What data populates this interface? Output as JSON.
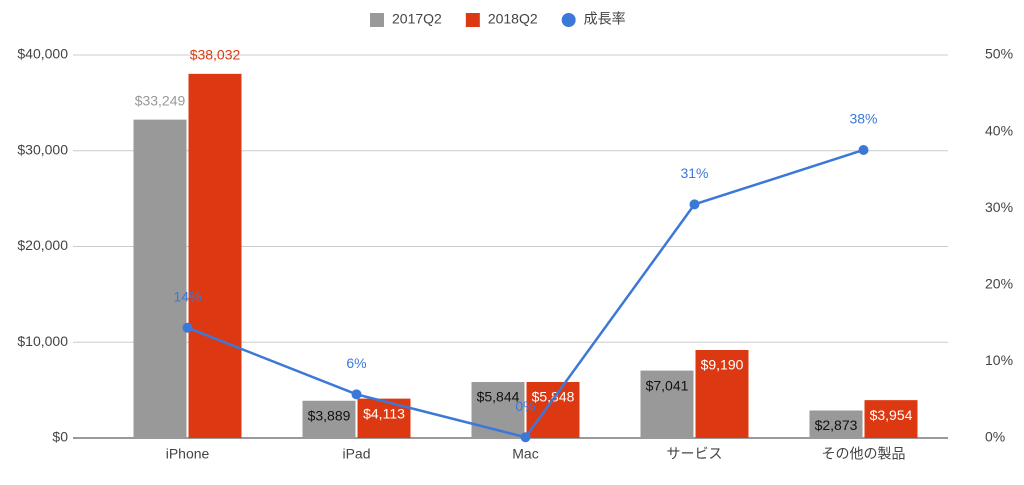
{
  "chart_data": {
    "type": "bar",
    "categories": [
      "iPhone",
      "iPad",
      "Mac",
      "サービス",
      "その他の製品"
    ],
    "series": [
      {
        "name": "2017Q2",
        "color": "#999999",
        "values": [
          33249,
          3889,
          5844,
          7041,
          2873
        ],
        "value_labels": [
          "$33,249",
          "$3,889",
          "$5,844",
          "$7,041",
          "$2,873"
        ]
      },
      {
        "name": "2018Q2",
        "color": "#dc3912",
        "values": [
          38032,
          4113,
          5848,
          9190,
          3954
        ],
        "value_labels": [
          "$38,032",
          "$4,113",
          "$5,848",
          "$9,190",
          "$3,954"
        ]
      },
      {
        "name": "成長率",
        "type": "line",
        "axis": "y2",
        "color": "#3c78d8",
        "values": [
          14.4,
          5.7,
          0.1,
          30.5,
          37.6
        ],
        "value_labels": [
          "14%",
          "6%",
          "0%",
          "31%",
          "38%"
        ]
      }
    ],
    "ylim": [
      0,
      40000
    ],
    "yticks": [
      {
        "value": 0,
        "label": "$0"
      },
      {
        "value": 10000,
        "label": "$10,000"
      },
      {
        "value": 20000,
        "label": "$20,000"
      },
      {
        "value": 30000,
        "label": "$30,000"
      },
      {
        "value": 40000,
        "label": "$40,000"
      }
    ],
    "y2lim": [
      0,
      50
    ],
    "y2ticks": [
      {
        "value": 0,
        "label": "0%"
      },
      {
        "value": 10,
        "label": "10%"
      },
      {
        "value": 20,
        "label": "20%"
      },
      {
        "value": 30,
        "label": "30%"
      },
      {
        "value": 40,
        "label": "40%"
      },
      {
        "value": 50,
        "label": "50%"
      }
    ],
    "grid": true,
    "legend": "top"
  }
}
